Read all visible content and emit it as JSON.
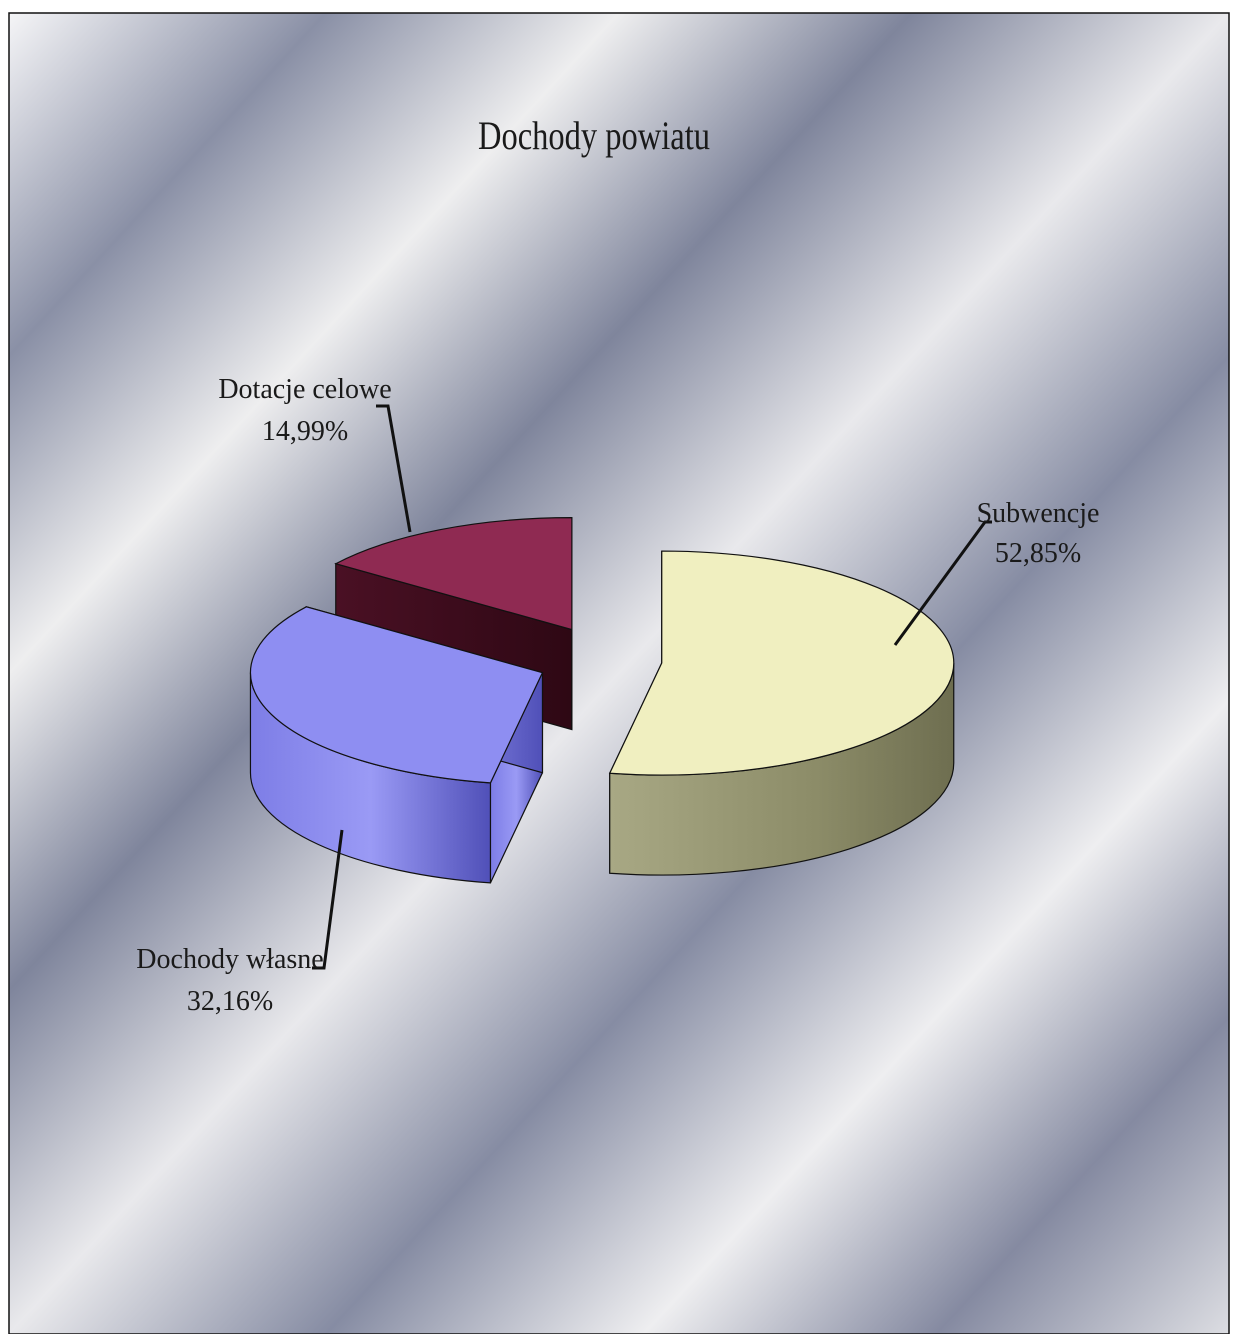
{
  "chart_data": {
    "type": "pie",
    "title": "Dochody powiatu",
    "style": "3d-exploded",
    "slices": [
      {
        "label": "Subwencje",
        "value": 52.85,
        "value_label": "52,85%",
        "color": "#f0efc0"
      },
      {
        "label": "Dochody własne",
        "value": 32.16,
        "value_label": "32,16%",
        "color": "#8e8ef2"
      },
      {
        "label": "Dotacje celowe",
        "value": 14.99,
        "value_label": "14,99%",
        "color": "#8f2a52"
      }
    ]
  }
}
